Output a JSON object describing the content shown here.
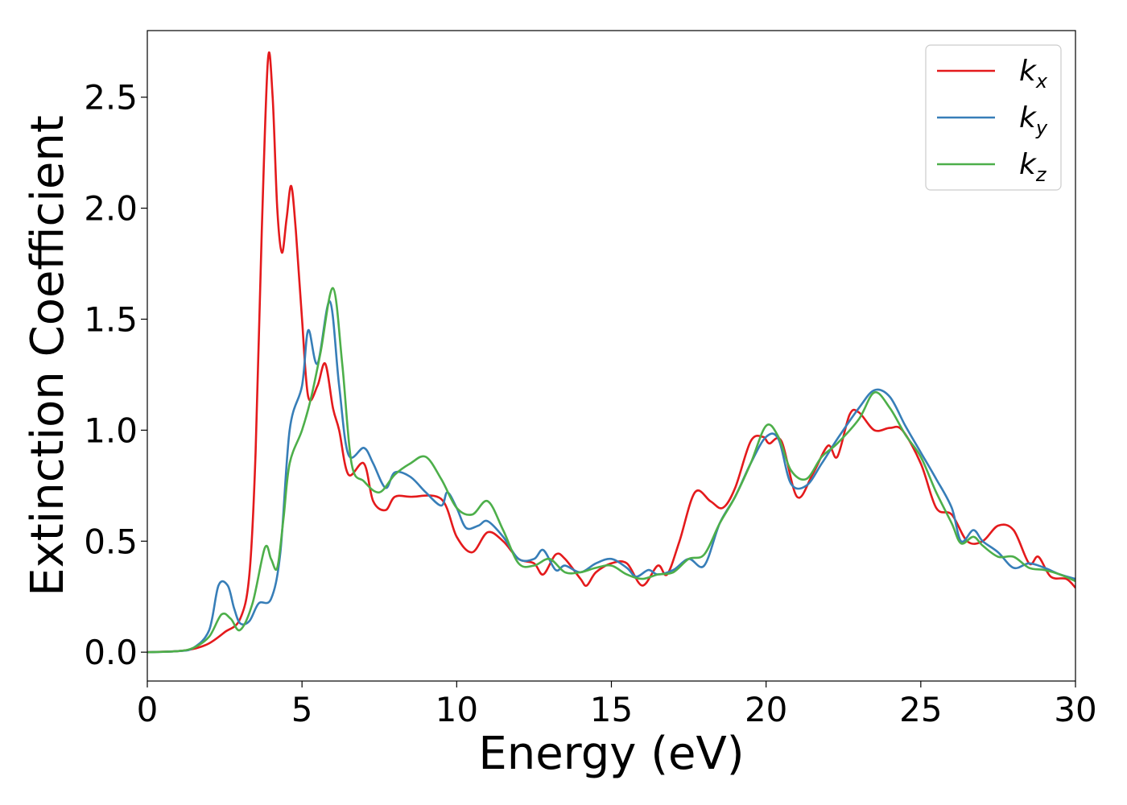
{
  "chart_data": {
    "type": "line",
    "xlabel": "Energy (eV)",
    "ylabel": "Extinction Coefficient",
    "xlim": [
      0,
      30
    ],
    "ylim": [
      -0.13,
      2.8
    ],
    "xticks": [
      0,
      5,
      10,
      15,
      20,
      25,
      30
    ],
    "xtick_labels": [
      "0",
      "5",
      "10",
      "15",
      "20",
      "25",
      "30"
    ],
    "yticks": [
      0.0,
      0.5,
      1.0,
      1.5,
      2.0,
      2.5
    ],
    "ytick_labels": [
      "0.0",
      "0.5",
      "1.0",
      "1.5",
      "2.0",
      "2.5"
    ],
    "grid": false,
    "legend_position": "top-right",
    "series": [
      {
        "name": "kx",
        "label_base": "k",
        "label_sub": "x",
        "color": "#e41a1c",
        "points": [
          [
            0,
            0
          ],
          [
            1,
            0.005
          ],
          [
            1.5,
            0.015
          ],
          [
            2,
            0.04
          ],
          [
            2.5,
            0.09
          ],
          [
            3,
            0.15
          ],
          [
            3.3,
            0.35
          ],
          [
            3.5,
            0.9
          ],
          [
            3.7,
            1.9
          ],
          [
            3.9,
            2.67
          ],
          [
            4.05,
            2.5
          ],
          [
            4.2,
            2.0
          ],
          [
            4.35,
            1.8
          ],
          [
            4.5,
            1.95
          ],
          [
            4.65,
            2.1
          ],
          [
            4.8,
            1.9
          ],
          [
            5.0,
            1.5
          ],
          [
            5.2,
            1.15
          ],
          [
            5.5,
            1.2
          ],
          [
            5.75,
            1.3
          ],
          [
            6.0,
            1.1
          ],
          [
            6.2,
            1.0
          ],
          [
            6.5,
            0.8
          ],
          [
            7.0,
            0.85
          ],
          [
            7.3,
            0.68
          ],
          [
            7.7,
            0.64
          ],
          [
            8.0,
            0.7
          ],
          [
            8.5,
            0.7
          ],
          [
            9.5,
            0.69
          ],
          [
            10.0,
            0.52
          ],
          [
            10.5,
            0.45
          ],
          [
            11.0,
            0.54
          ],
          [
            11.5,
            0.5
          ],
          [
            12.0,
            0.42
          ],
          [
            12.5,
            0.4
          ],
          [
            12.8,
            0.35
          ],
          [
            13.2,
            0.44
          ],
          [
            13.5,
            0.42
          ],
          [
            14.0,
            0.33
          ],
          [
            14.2,
            0.3
          ],
          [
            14.5,
            0.36
          ],
          [
            15.0,
            0.4
          ],
          [
            15.5,
            0.4
          ],
          [
            16.0,
            0.3
          ],
          [
            16.5,
            0.39
          ],
          [
            16.8,
            0.35
          ],
          [
            17.2,
            0.5
          ],
          [
            17.7,
            0.72
          ],
          [
            18.2,
            0.68
          ],
          [
            18.6,
            0.65
          ],
          [
            19.0,
            0.74
          ],
          [
            19.5,
            0.95
          ],
          [
            19.9,
            0.97
          ],
          [
            20.1,
            0.94
          ],
          [
            20.5,
            0.95
          ],
          [
            21.0,
            0.7
          ],
          [
            21.5,
            0.8
          ],
          [
            22.0,
            0.93
          ],
          [
            22.3,
            0.88
          ],
          [
            22.7,
            1.07
          ],
          [
            23.0,
            1.08
          ],
          [
            23.5,
            1.0
          ],
          [
            24.0,
            1.01
          ],
          [
            24.4,
            1.0
          ],
          [
            25.0,
            0.85
          ],
          [
            25.5,
            0.65
          ],
          [
            26.0,
            0.62
          ],
          [
            26.5,
            0.5
          ],
          [
            27.0,
            0.5
          ],
          [
            27.5,
            0.57
          ],
          [
            28.0,
            0.55
          ],
          [
            28.5,
            0.4
          ],
          [
            28.8,
            0.43
          ],
          [
            29.2,
            0.34
          ],
          [
            29.7,
            0.33
          ],
          [
            30,
            0.29
          ]
        ]
      },
      {
        "name": "ky",
        "label_base": "k",
        "label_sub": "y",
        "color": "#377eb8",
        "points": [
          [
            0,
            0
          ],
          [
            1,
            0.005
          ],
          [
            1.5,
            0.02
          ],
          [
            2,
            0.1
          ],
          [
            2.3,
            0.3
          ],
          [
            2.6,
            0.3
          ],
          [
            2.8,
            0.2
          ],
          [
            3.0,
            0.13
          ],
          [
            3.3,
            0.14
          ],
          [
            3.6,
            0.22
          ],
          [
            4.0,
            0.24
          ],
          [
            4.3,
            0.45
          ],
          [
            4.6,
            1.0
          ],
          [
            5.0,
            1.2
          ],
          [
            5.2,
            1.45
          ],
          [
            5.5,
            1.3
          ],
          [
            5.9,
            1.58
          ],
          [
            6.2,
            1.2
          ],
          [
            6.5,
            0.89
          ],
          [
            7.0,
            0.92
          ],
          [
            7.3,
            0.85
          ],
          [
            7.7,
            0.74
          ],
          [
            8.0,
            0.81
          ],
          [
            8.5,
            0.79
          ],
          [
            9.0,
            0.72
          ],
          [
            9.5,
            0.66
          ],
          [
            9.7,
            0.72
          ],
          [
            10.0,
            0.65
          ],
          [
            10.3,
            0.56
          ],
          [
            10.7,
            0.57
          ],
          [
            11.0,
            0.59
          ],
          [
            11.5,
            0.52
          ],
          [
            12.0,
            0.42
          ],
          [
            12.5,
            0.42
          ],
          [
            12.8,
            0.46
          ],
          [
            13.2,
            0.37
          ],
          [
            13.5,
            0.39
          ],
          [
            14.0,
            0.36
          ],
          [
            14.5,
            0.4
          ],
          [
            15.0,
            0.42
          ],
          [
            15.5,
            0.38
          ],
          [
            15.8,
            0.34
          ],
          [
            16.2,
            0.37
          ],
          [
            16.5,
            0.35
          ],
          [
            17.0,
            0.37
          ],
          [
            17.5,
            0.42
          ],
          [
            18.0,
            0.39
          ],
          [
            18.5,
            0.58
          ],
          [
            19.0,
            0.7
          ],
          [
            19.5,
            0.85
          ],
          [
            20.0,
            0.97
          ],
          [
            20.4,
            0.96
          ],
          [
            20.8,
            0.76
          ],
          [
            21.3,
            0.75
          ],
          [
            21.8,
            0.85
          ],
          [
            22.3,
            0.96
          ],
          [
            23.0,
            1.1
          ],
          [
            23.5,
            1.18
          ],
          [
            24.0,
            1.15
          ],
          [
            24.5,
            1.02
          ],
          [
            25.0,
            0.9
          ],
          [
            25.5,
            0.78
          ],
          [
            26.0,
            0.65
          ],
          [
            26.3,
            0.5
          ],
          [
            26.7,
            0.55
          ],
          [
            27.0,
            0.5
          ],
          [
            27.5,
            0.45
          ],
          [
            28.0,
            0.38
          ],
          [
            28.5,
            0.4
          ],
          [
            29.0,
            0.38
          ],
          [
            29.5,
            0.35
          ],
          [
            30,
            0.33
          ]
        ]
      },
      {
        "name": "kz",
        "label_base": "k",
        "label_sub": "z",
        "color": "#4daf4a",
        "points": [
          [
            0,
            0
          ],
          [
            1,
            0.005
          ],
          [
            1.5,
            0.02
          ],
          [
            2,
            0.07
          ],
          [
            2.4,
            0.17
          ],
          [
            2.7,
            0.15
          ],
          [
            3.0,
            0.1
          ],
          [
            3.4,
            0.22
          ],
          [
            3.8,
            0.47
          ],
          [
            4.0,
            0.42
          ],
          [
            4.2,
            0.38
          ],
          [
            4.4,
            0.6
          ],
          [
            4.6,
            0.85
          ],
          [
            5.0,
            1.0
          ],
          [
            5.3,
            1.15
          ],
          [
            5.6,
            1.35
          ],
          [
            6.0,
            1.64
          ],
          [
            6.3,
            1.3
          ],
          [
            6.6,
            0.85
          ],
          [
            7.0,
            0.77
          ],
          [
            7.5,
            0.72
          ],
          [
            8.0,
            0.8
          ],
          [
            8.5,
            0.85
          ],
          [
            9.0,
            0.88
          ],
          [
            9.5,
            0.78
          ],
          [
            10.0,
            0.65
          ],
          [
            10.5,
            0.62
          ],
          [
            11.0,
            0.68
          ],
          [
            11.5,
            0.55
          ],
          [
            12.0,
            0.4
          ],
          [
            12.5,
            0.39
          ],
          [
            13.0,
            0.42
          ],
          [
            13.5,
            0.36
          ],
          [
            14.0,
            0.36
          ],
          [
            14.5,
            0.38
          ],
          [
            15.0,
            0.39
          ],
          [
            15.5,
            0.35
          ],
          [
            16.0,
            0.33
          ],
          [
            16.5,
            0.35
          ],
          [
            17.0,
            0.36
          ],
          [
            17.5,
            0.42
          ],
          [
            18.0,
            0.44
          ],
          [
            18.5,
            0.58
          ],
          [
            19.0,
            0.7
          ],
          [
            19.5,
            0.85
          ],
          [
            20.0,
            1.02
          ],
          [
            20.4,
            0.97
          ],
          [
            20.8,
            0.82
          ],
          [
            21.3,
            0.78
          ],
          [
            21.8,
            0.88
          ],
          [
            22.3,
            0.94
          ],
          [
            23.0,
            1.05
          ],
          [
            23.5,
            1.17
          ],
          [
            24.0,
            1.1
          ],
          [
            24.5,
            0.98
          ],
          [
            25.0,
            0.88
          ],
          [
            25.5,
            0.72
          ],
          [
            26.0,
            0.58
          ],
          [
            26.3,
            0.49
          ],
          [
            26.7,
            0.52
          ],
          [
            27.0,
            0.48
          ],
          [
            27.5,
            0.43
          ],
          [
            28.0,
            0.43
          ],
          [
            28.5,
            0.38
          ],
          [
            29.0,
            0.37
          ],
          [
            29.5,
            0.35
          ],
          [
            30,
            0.32
          ]
        ]
      }
    ]
  }
}
